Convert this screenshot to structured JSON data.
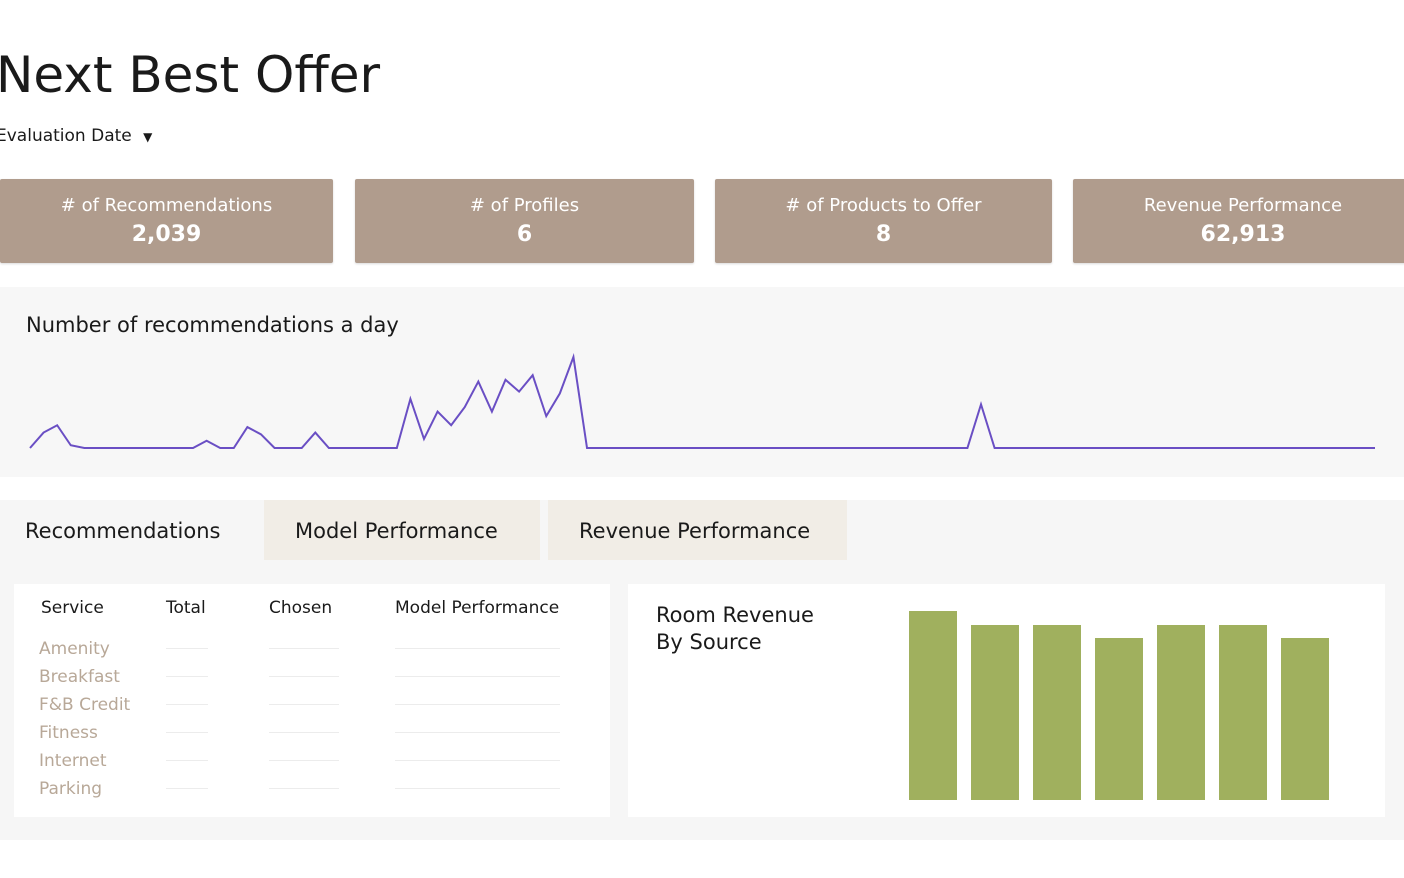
{
  "header": {
    "title": "Next Best Offer",
    "filter": "Evaluation Date"
  },
  "kpis": [
    {
      "label": "# of Recommendations",
      "value": "2,039"
    },
    {
      "label": "# of Profiles",
      "value": "6"
    },
    {
      "label": "# of Products to Offer",
      "value": "8"
    },
    {
      "label": "Revenue Performance",
      "value": "62,913"
    }
  ],
  "line_chart": {
    "type": "line",
    "title": "Number of recommendations a day",
    "color": "#6a4fc4",
    "values": [
      0,
      17,
      25,
      3,
      0,
      0,
      0,
      0,
      0,
      0,
      0,
      0,
      0,
      8,
      0,
      0,
      23,
      15,
      0,
      0,
      0,
      17,
      0,
      0,
      0,
      0,
      0,
      0,
      54,
      10,
      40,
      25,
      45,
      73,
      40,
      75,
      62,
      80,
      35,
      60,
      100,
      0,
      0,
      0,
      0,
      0,
      0,
      0,
      0,
      0,
      0,
      0,
      0,
      0,
      0,
      0,
      0,
      0,
      0,
      0,
      0,
      0,
      0,
      0,
      0,
      0,
      0,
      0,
      0,
      0,
      48,
      0,
      0,
      0,
      0,
      0,
      0,
      0,
      0,
      0,
      0,
      0,
      0,
      0,
      0,
      0,
      0,
      0,
      0,
      0,
      0,
      0,
      0,
      0,
      0,
      0,
      0,
      0,
      0,
      0
    ]
  },
  "tabs": [
    "Recommendations",
    "Model Performance",
    "Revenue Performance"
  ],
  "table": {
    "columns": [
      "Service",
      "Total",
      "Chosen",
      "Model Performance"
    ],
    "rows": [
      "Amenity",
      "Breakfast",
      "F&B Credit",
      "Fitness",
      "Internet",
      "Parking"
    ]
  },
  "bar_chart": {
    "type": "bar",
    "title": "Room Revenue\nBy Source",
    "color": "#a0b05e",
    "categories": [
      null,
      null,
      null,
      null,
      null,
      null,
      null
    ],
    "values": [
      189,
      175,
      175,
      162,
      175,
      175,
      162
    ]
  }
}
